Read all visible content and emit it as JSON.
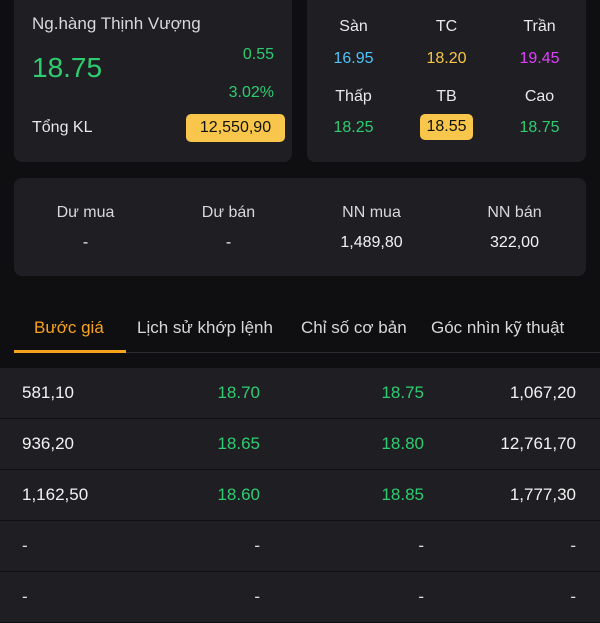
{
  "stock": {
    "name": "Ng.hàng Thịnh Vượng",
    "price": "18.75",
    "change": "0.55",
    "change_pct": "3.02%",
    "volume_label": "Tổng KL",
    "volume_value": "12,550,90"
  },
  "price_ref": {
    "floor_label": "Sàn",
    "floor": "16.95",
    "ref_label": "TC",
    "ref": "18.20",
    "ceiling_label": "Trần",
    "ceiling": "19.45",
    "low_label": "Thấp",
    "low": "18.25",
    "avg_label": "TB",
    "avg": "18.55",
    "high_label": "Cao",
    "high": "18.75"
  },
  "colors": {
    "up": "#2ecc71",
    "floor": "#4fc3f7",
    "ref": "#f7c64a",
    "ceiling": "#e040fb",
    "accent": "#f7a31c"
  },
  "stats": {
    "bid_label": "Dư mua",
    "bid": "-",
    "ask_label": "Dư bán",
    "ask": "-",
    "foreign_buy_label": "NN mua",
    "foreign_buy": "1,489,80",
    "foreign_sell_label": "NN bán",
    "foreign_sell": "322,00"
  },
  "tabs": [
    {
      "label": "Bước giá",
      "active": true
    },
    {
      "label": "Lịch sử khớp lệnh",
      "active": false
    },
    {
      "label": "Chỉ số cơ bản",
      "active": false
    },
    {
      "label": "Góc nhìn kỹ thuật",
      "active": false
    }
  ],
  "order_book": [
    {
      "bid_vol": "581,10",
      "bid_price": "18.70",
      "ask_price": "18.75",
      "ask_vol": "1,067,20"
    },
    {
      "bid_vol": "936,20",
      "bid_price": "18.65",
      "ask_price": "18.80",
      "ask_vol": "12,761,70"
    },
    {
      "bid_vol": "1,162,50",
      "bid_price": "18.60",
      "ask_price": "18.85",
      "ask_vol": "1,777,30"
    },
    {
      "bid_vol": "-",
      "bid_price": "-",
      "ask_price": "-",
      "ask_vol": "-"
    },
    {
      "bid_vol": "-",
      "bid_price": "-",
      "ask_price": "-",
      "ask_vol": "-"
    }
  ]
}
